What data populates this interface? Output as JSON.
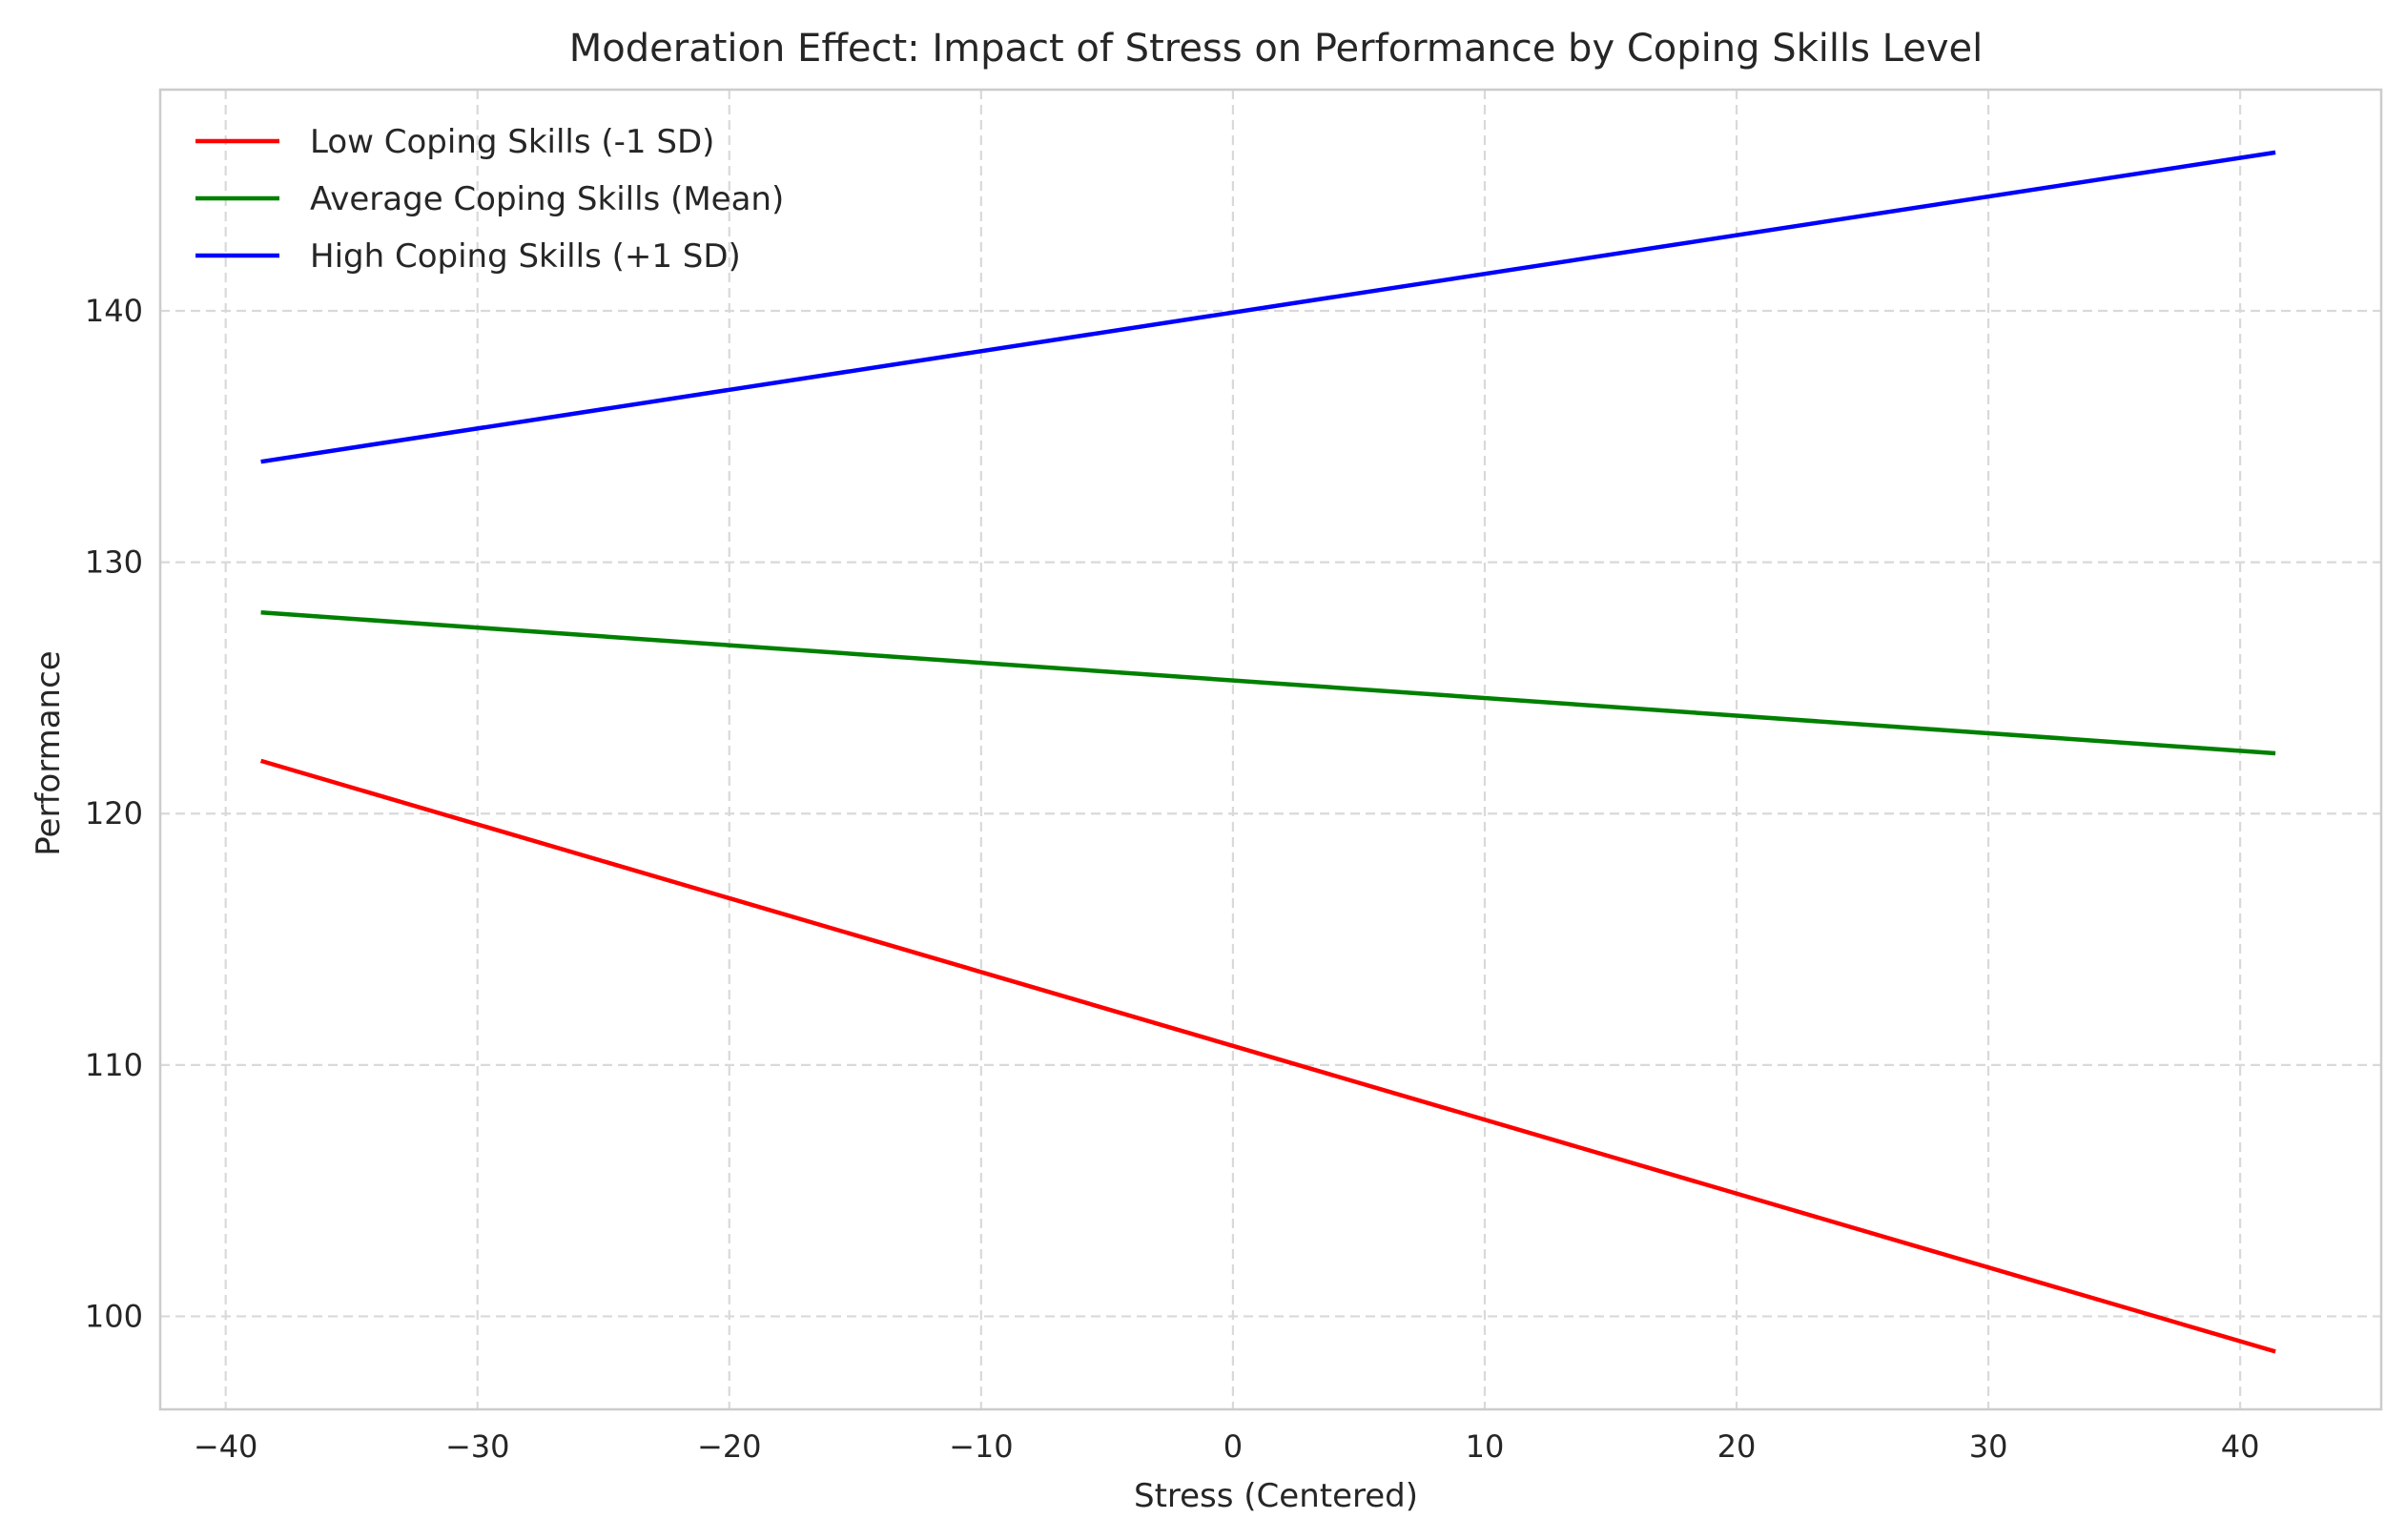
{
  "chart_data": {
    "type": "line",
    "title": "Moderation Effect: Impact of Stress on Performance by Coping Skills Level",
    "xlabel": "Stress (Centered)",
    "ylabel": "Performance",
    "xlim": [
      -42.6,
      45.6
    ],
    "ylim": [
      96.3,
      148.8
    ],
    "xticks": [
      -40,
      -30,
      -20,
      -10,
      0,
      10,
      20,
      30,
      40
    ],
    "xtick_labels": [
      "−40",
      "−30",
      "−20",
      "−10",
      "0",
      "10",
      "20",
      "30",
      "40"
    ],
    "yticks": [
      100,
      110,
      120,
      130,
      140
    ],
    "ytick_labels": [
      "100",
      "110",
      "120",
      "130",
      "140"
    ],
    "grid": true,
    "legend_position": "top-left",
    "series": [
      {
        "name": "Low Coping Skills (-1 SD)",
        "color": "#ff0000",
        "x": [
          -38.6,
          41.4
        ],
        "y": [
          122.1,
          98.6
        ]
      },
      {
        "name": "Average Coping Skills (Mean)",
        "color": "#008000",
        "x": [
          -38.6,
          41.4
        ],
        "y": [
          128.0,
          122.4
        ]
      },
      {
        "name": "High Coping Skills (+1 SD)",
        "color": "#0000ff",
        "x": [
          -38.6,
          41.4
        ],
        "y": [
          134.0,
          146.3
        ]
      }
    ]
  }
}
